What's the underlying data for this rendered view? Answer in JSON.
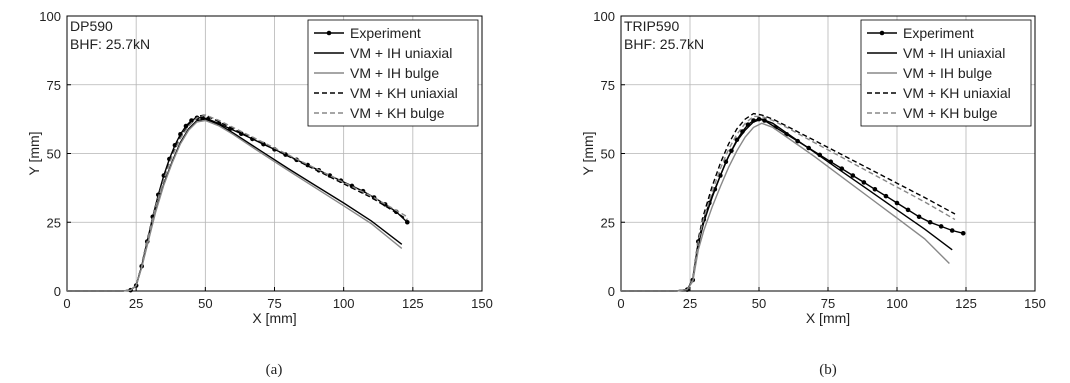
{
  "chart_data": [
    {
      "type": "line",
      "caption": "(a)",
      "annotations": [
        "DP590",
        "BHF: 25.7kN"
      ],
      "xlabel": "X [mm]",
      "ylabel": "Y [mm]",
      "xlim": [
        0,
        150
      ],
      "ylim": [
        0,
        100
      ],
      "xticks": [
        0,
        25,
        50,
        75,
        100,
        125,
        150
      ],
      "yticks": [
        0,
        25,
        50,
        75,
        100
      ],
      "grid": true,
      "legend_position": "top-right",
      "series": [
        {
          "name": "Experiment",
          "color": "#000000",
          "style": "solid-marker",
          "x": [
            0,
            5,
            10,
            15,
            20,
            23,
            25,
            27,
            29,
            31,
            33,
            35,
            37,
            39,
            41,
            43,
            45,
            47,
            49,
            51,
            55,
            59,
            63,
            67,
            71,
            75,
            79,
            83,
            87,
            91,
            95,
            99,
            103,
            107,
            111,
            115,
            119,
            123
          ],
          "y": [
            0,
            0,
            0,
            0,
            0,
            0.3,
            2,
            9,
            18,
            27,
            35,
            42,
            48,
            53,
            57,
            60,
            62,
            63,
            63,
            62.5,
            60.8,
            59,
            57.2,
            55.3,
            53.4,
            51.5,
            49.6,
            47.7,
            45.8,
            43.9,
            42,
            40.1,
            38.2,
            36.3,
            34,
            31.5,
            28.8,
            25
          ]
        },
        {
          "name": "VM + IH uniaxial",
          "color": "#000000",
          "style": "solid",
          "x": [
            0,
            20,
            23,
            25,
            27,
            29,
            32,
            35,
            38,
            41,
            44,
            47,
            50,
            55,
            60,
            70,
            80,
            90,
            100,
            110,
            121
          ],
          "y": [
            0,
            0,
            0.3,
            2,
            9,
            17,
            29,
            39,
            47,
            54,
            59,
            62,
            62.5,
            60.5,
            57.5,
            51,
            44.5,
            38.2,
            32,
            25.5,
            17
          ]
        },
        {
          "name": "VM + IH bulge",
          "color": "#888888",
          "style": "solid",
          "x": [
            0,
            20,
            23,
            25,
            27,
            29,
            32,
            35,
            38,
            41,
            44,
            47,
            50,
            55,
            60,
            70,
            80,
            90,
            100,
            110,
            121
          ],
          "y": [
            0,
            0,
            0.3,
            2,
            8.5,
            16.5,
            28.5,
            38.5,
            46.5,
            53.5,
            58.5,
            61.5,
            62,
            60,
            57,
            50.3,
            43.8,
            37.4,
            31,
            24.5,
            15.5
          ]
        },
        {
          "name": "VM + KH uniaxial",
          "color": "#000000",
          "style": "dashed",
          "x": [
            0,
            20,
            23,
            25,
            27,
            29,
            32,
            35,
            38,
            41,
            44,
            47,
            50,
            55,
            60,
            70,
            80,
            90,
            100,
            110,
            123
          ],
          "y": [
            0,
            0,
            0.3,
            2,
            9.5,
            18.5,
            31,
            41,
            49.5,
            56,
            60.5,
            63.5,
            64,
            61.5,
            59,
            54,
            49,
            44,
            39,
            34,
            26
          ]
        },
        {
          "name": "VM + KH bulge",
          "color": "#888888",
          "style": "dashed",
          "x": [
            0,
            20,
            23,
            25,
            27,
            29,
            32,
            35,
            38,
            41,
            44,
            47,
            50,
            55,
            60,
            70,
            80,
            90,
            100,
            110,
            123
          ],
          "y": [
            0,
            0,
            0.3,
            2,
            9,
            18,
            30.5,
            40.5,
            49,
            55.5,
            60,
            63,
            64,
            62,
            59.5,
            54.5,
            49.5,
            44.5,
            39.5,
            34.5,
            27
          ]
        }
      ]
    },
    {
      "type": "line",
      "caption": "(b)",
      "annotations": [
        "TRIP590",
        "BHF: 25.7kN"
      ],
      "xlabel": "X [mm]",
      "ylabel": "Y [mm]",
      "xlim": [
        0,
        150
      ],
      "ylim": [
        0,
        100
      ],
      "xticks": [
        0,
        25,
        50,
        75,
        100,
        125,
        150
      ],
      "yticks": [
        0,
        25,
        50,
        75,
        100
      ],
      "grid": true,
      "legend_position": "top-right",
      "series": [
        {
          "name": "Experiment",
          "color": "#000000",
          "style": "solid-marker",
          "x": [
            0,
            5,
            10,
            15,
            20,
            24,
            26,
            28,
            30,
            32,
            34,
            36,
            38,
            40,
            42,
            44,
            46,
            48,
            50,
            52,
            56,
            60,
            64,
            68,
            72,
            76,
            80,
            84,
            88,
            92,
            96,
            100,
            104,
            108,
            112,
            116,
            120,
            124
          ],
          "y": [
            0,
            0,
            0,
            0,
            0,
            0.5,
            4,
            18,
            26,
            32,
            37,
            42,
            47,
            51,
            55,
            58,
            60.5,
            62,
            62.5,
            62,
            59.5,
            57,
            54.5,
            52,
            49.5,
            47,
            44.5,
            42,
            39.5,
            37,
            34.5,
            32,
            29.5,
            27,
            25,
            23.5,
            22,
            21
          ]
        },
        {
          "name": "VM + IH uniaxial",
          "color": "#000000",
          "style": "solid",
          "x": [
            0,
            20,
            24,
            26,
            28,
            30,
            33,
            36,
            39,
            42,
            45,
            48,
            51,
            55,
            60,
            70,
            80,
            90,
            100,
            110,
            120
          ],
          "y": [
            0,
            0,
            0.5,
            4,
            17,
            25,
            34,
            42,
            49,
            54.5,
            58.5,
            61.5,
            62.5,
            61,
            57.5,
            50.5,
            43.5,
            36.5,
            29.5,
            22.5,
            15
          ]
        },
        {
          "name": "VM + IH bulge",
          "color": "#888888",
          "style": "solid",
          "x": [
            0,
            20,
            24,
            26,
            28,
            30,
            33,
            36,
            39,
            42,
            45,
            48,
            51,
            55,
            60,
            70,
            80,
            90,
            100,
            110,
            119
          ],
          "y": [
            0,
            0,
            0.5,
            3.5,
            15,
            22,
            30.5,
            38,
            45,
            51,
            56,
            59.5,
            61,
            59.5,
            56,
            49,
            41.5,
            34,
            26.5,
            19,
            10
          ]
        },
        {
          "name": "VM + KH uniaxial",
          "color": "#000000",
          "style": "dashed",
          "x": [
            0,
            20,
            24,
            26,
            28,
            30,
            33,
            36,
            39,
            42,
            45,
            48,
            51,
            55,
            60,
            70,
            80,
            90,
            100,
            110,
            121
          ],
          "y": [
            0,
            0,
            0.5,
            4.5,
            19,
            28,
            38,
            46.5,
            53.5,
            59,
            62.5,
            64.5,
            64,
            62.5,
            60,
            54.8,
            49.6,
            44.4,
            39.2,
            34,
            28
          ]
        },
        {
          "name": "VM + KH bulge",
          "color": "#888888",
          "style": "dashed",
          "x": [
            0,
            20,
            24,
            26,
            28,
            30,
            33,
            36,
            39,
            42,
            45,
            48,
            51,
            55,
            60,
            70,
            80,
            90,
            100,
            110,
            121
          ],
          "y": [
            0,
            0,
            0.5,
            4,
            18,
            26.5,
            36,
            44.5,
            51.5,
            57,
            61,
            63.5,
            63.5,
            62,
            59.5,
            54,
            48.6,
            43.2,
            37.8,
            32.4,
            26
          ]
        }
      ]
    }
  ]
}
